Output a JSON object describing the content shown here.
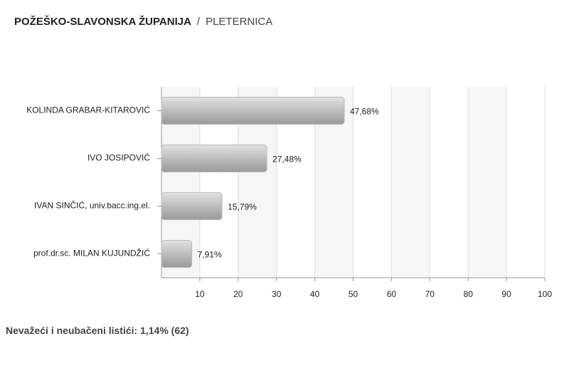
{
  "header": {
    "region": "POŽEŠKO-SLAVONSKA ŽUPANIJA",
    "separator": "/",
    "place": "PLETERNICA"
  },
  "chart_data": {
    "type": "bar",
    "orientation": "horizontal",
    "categories": [
      "KOLINDA GRABAR-KITAROVIĆ",
      "IVO JOSIPOVIĆ",
      "IVAN SINČIĆ, univ.bacc.ing.el.",
      "prof.dr.sc. MILAN KUJUNDŽIĆ"
    ],
    "values": [
      47.68,
      27.48,
      15.79,
      7.91
    ],
    "value_labels": [
      "47,68%",
      "27,48%",
      "15,79%",
      "7,91%"
    ],
    "color": "#b8b8b8",
    "xlim": [
      0,
      100
    ],
    "xticks": [
      10,
      20,
      30,
      40,
      50,
      60,
      70,
      80,
      90,
      100
    ],
    "grid": true
  },
  "footer": {
    "label": "Nevažeći i neubačeni listići:",
    "value": "1,14% (62)"
  }
}
